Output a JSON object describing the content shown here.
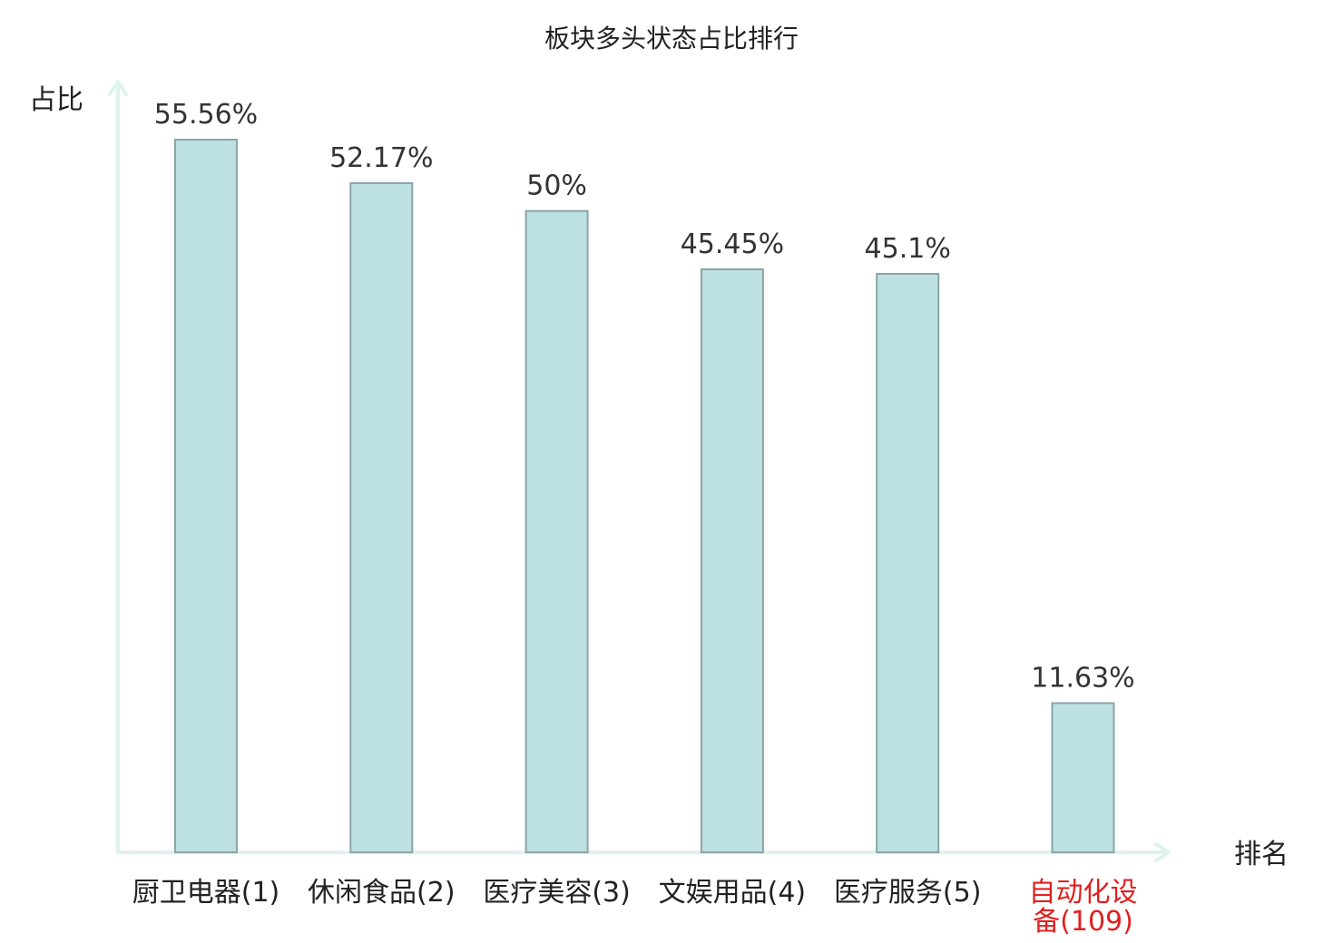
{
  "chart_data": {
    "type": "bar",
    "title": "板块多头状态占比排行",
    "ylabel": "占比",
    "xlabel": "排名",
    "categories": [
      "厨卫电器(1)",
      "休闲食品(2)",
      "医疗美容(3)",
      "文娱用品(4)",
      "医疗服务(5)",
      "自动化设备(109)"
    ],
    "values": [
      55.56,
      52.17,
      50,
      45.45,
      45.1,
      11.63
    ],
    "value_labels": [
      "55.56%",
      "52.17%",
      "50%",
      "45.45%",
      "45.1%",
      "11.63%"
    ],
    "highlight_index": 5,
    "ylim": [
      0,
      60
    ],
    "grid": false,
    "legend": "none"
  },
  "colors": {
    "bar_fill": "#bde0e2",
    "bar_stroke": "#8aa5a8",
    "axis": "#dff2ef",
    "highlight_text": "#e02020"
  }
}
